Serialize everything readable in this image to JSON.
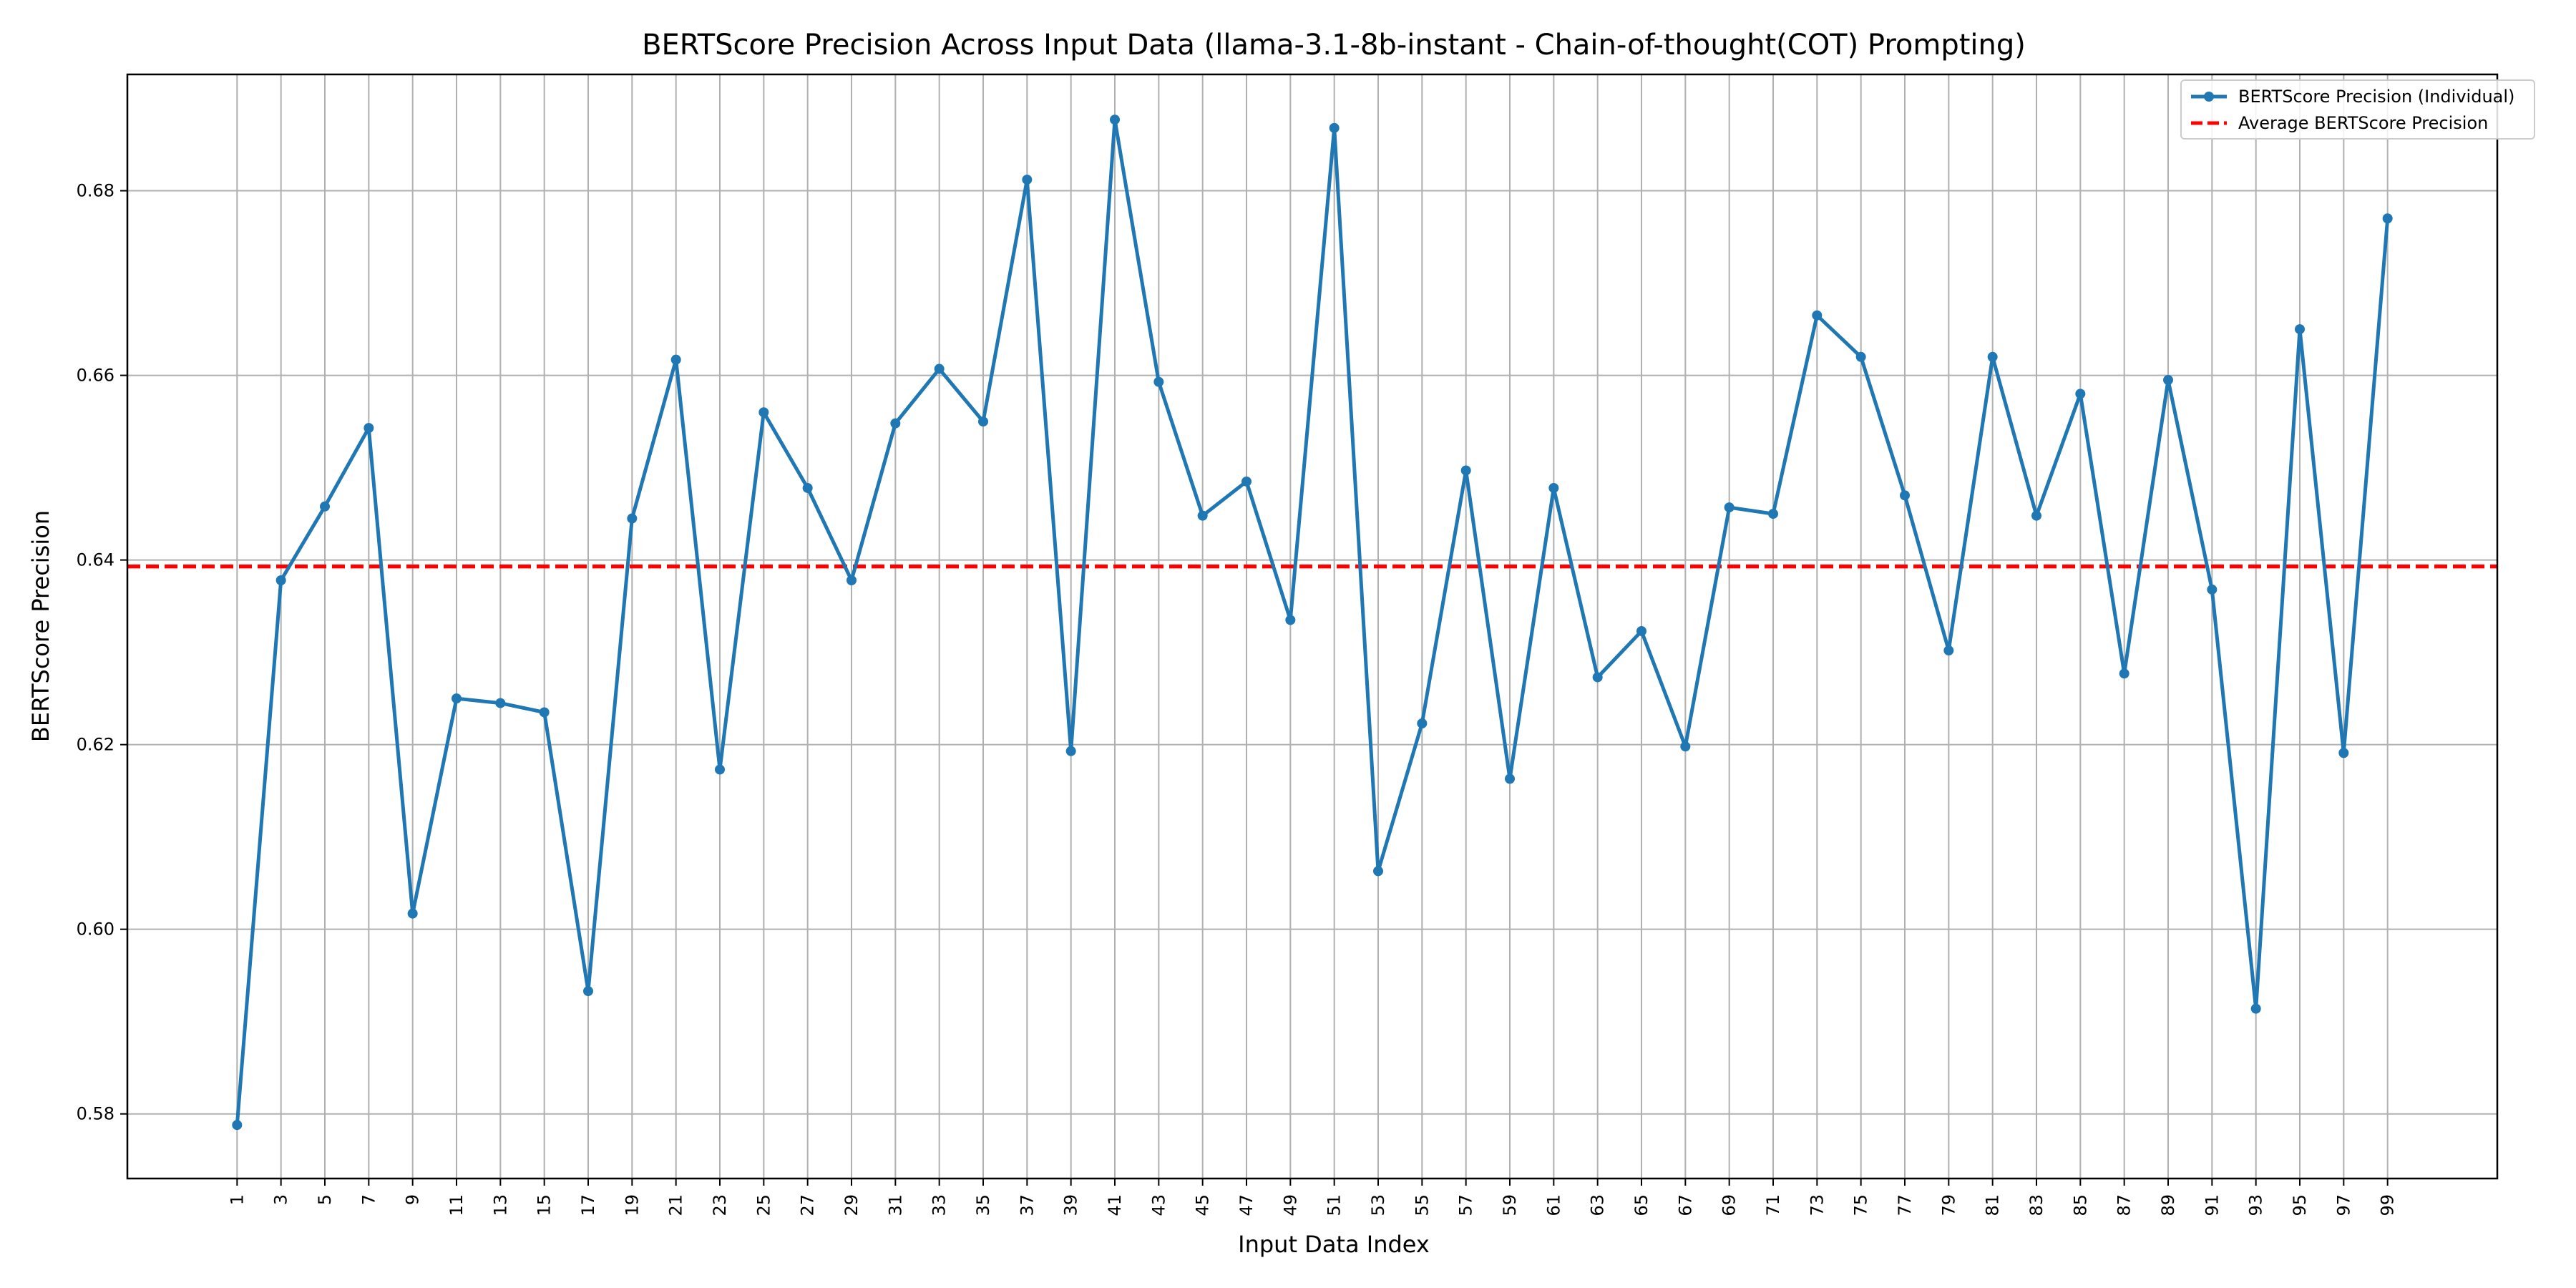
{
  "chart_data": {
    "type": "line",
    "title": "BERTScore Precision Across Input Data (llama-3.1-8b-instant - Chain-of-thought(COT) Prompting)",
    "xlabel": "Input Data Index",
    "ylabel": "BERTScore Precision",
    "xlim": [
      -4.0,
      104.0
    ],
    "ylim": [
      0.573,
      0.6926
    ],
    "x_ticks": [
      1,
      3,
      5,
      7,
      9,
      11,
      13,
      15,
      17,
      19,
      21,
      23,
      25,
      27,
      29,
      31,
      33,
      35,
      37,
      39,
      41,
      43,
      45,
      47,
      49,
      51,
      53,
      55,
      57,
      59,
      61,
      63,
      65,
      67,
      69,
      71,
      73,
      75,
      77,
      79,
      81,
      83,
      85,
      87,
      89,
      91,
      93,
      95,
      97,
      99
    ],
    "y_ticks": [
      0.58,
      0.6,
      0.62,
      0.64,
      0.66,
      0.68
    ],
    "y_tick_labels": [
      "0.58",
      "0.60",
      "0.62",
      "0.64",
      "0.66",
      "0.68"
    ],
    "grid": true,
    "legend_position": "top-right",
    "series": [
      {
        "name": "BERTScore Precision (Individual)",
        "color": "#1f77b4",
        "style": "solid",
        "marker": "circle",
        "x": [
          1,
          3,
          5,
          7,
          9,
          11,
          13,
          15,
          17,
          19,
          21,
          23,
          25,
          27,
          29,
          31,
          33,
          35,
          37,
          39,
          41,
          43,
          45,
          47,
          49,
          51,
          53,
          55,
          57,
          59,
          61,
          63,
          65,
          67,
          69,
          71,
          73,
          75,
          77,
          79,
          81,
          83,
          85,
          87,
          89,
          91,
          93,
          95,
          97,
          99
        ],
        "values": [
          0.5788,
          0.6378,
          0.6458,
          0.6543,
          0.6017,
          0.625,
          0.6245,
          0.6235,
          0.5933,
          0.6445,
          0.6617,
          0.6173,
          0.656,
          0.6478,
          0.6378,
          0.6548,
          0.6607,
          0.655,
          0.6812,
          0.6193,
          0.6877,
          0.6593,
          0.6448,
          0.6485,
          0.6335,
          0.6868,
          0.6063,
          0.6223,
          0.6497,
          0.6163,
          0.6478,
          0.6273,
          0.6323,
          0.6198,
          0.6457,
          0.645,
          0.6665,
          0.662,
          0.647,
          0.6302,
          0.662,
          0.6448,
          0.658,
          0.6277,
          0.6595,
          0.6368,
          0.5914,
          0.665,
          0.6191,
          0.677
        ]
      },
      {
        "name": "Average BERTScore Precision",
        "color": "#ff0000",
        "style": "dashed",
        "constant": 0.6393
      }
    ]
  }
}
